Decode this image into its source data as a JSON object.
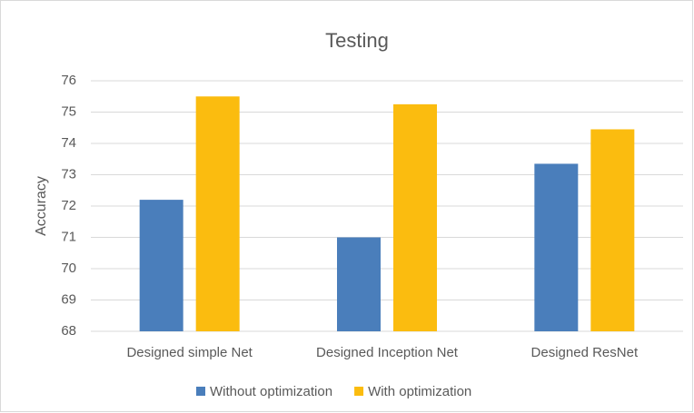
{
  "chart_data": {
    "type": "bar",
    "title": "Testing",
    "y_label": "Accuracy",
    "categories": [
      "Designed simple Net",
      "Designed Inception Net",
      "Designed ResNet"
    ],
    "series": [
      {
        "name": "Without optimization",
        "color": "#4a7ebb",
        "values": [
          72.2,
          71.0,
          73.35
        ]
      },
      {
        "name": "With optimization",
        "color": "#fbbc0f",
        "values": [
          75.5,
          75.25,
          74.45
        ]
      }
    ],
    "ylim": [
      68,
      76
    ],
    "yticks": [
      68,
      69,
      70,
      71,
      72,
      73,
      74,
      75,
      76
    ],
    "grid": true,
    "legend": "bottom"
  }
}
